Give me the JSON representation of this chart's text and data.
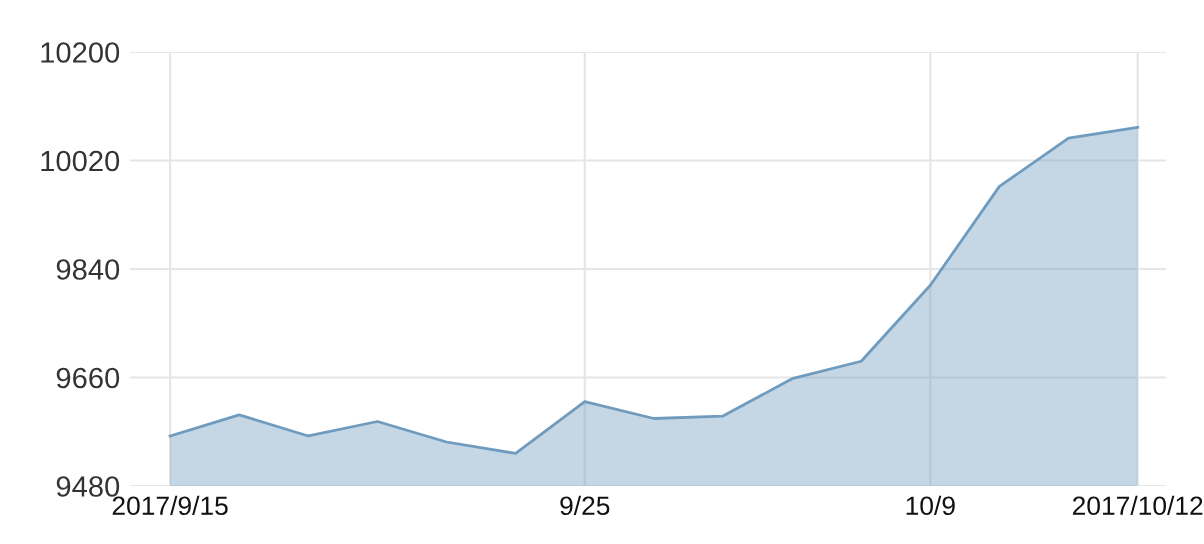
{
  "chart_data": {
    "type": "area",
    "categories": [
      "2017/9/15",
      null,
      null,
      null,
      null,
      null,
      "9/25",
      null,
      null,
      null,
      null,
      "10/9",
      null,
      null,
      "2017/10/12"
    ],
    "series": [
      {
        "color": "#6f9bbf",
        "values": [
          9563,
          9598,
          9563,
          9587,
          9553,
          9534,
          9620,
          9592,
          9596,
          9658,
          9687,
          9813,
          9977,
          10057,
          10075
        ]
      }
    ],
    "ylim": [
      9480,
      10200
    ],
    "yticks": [
      9480,
      9660,
      9840,
      10020,
      10200
    ],
    "grid": true,
    "marker": "none",
    "line_style": "solid"
  }
}
